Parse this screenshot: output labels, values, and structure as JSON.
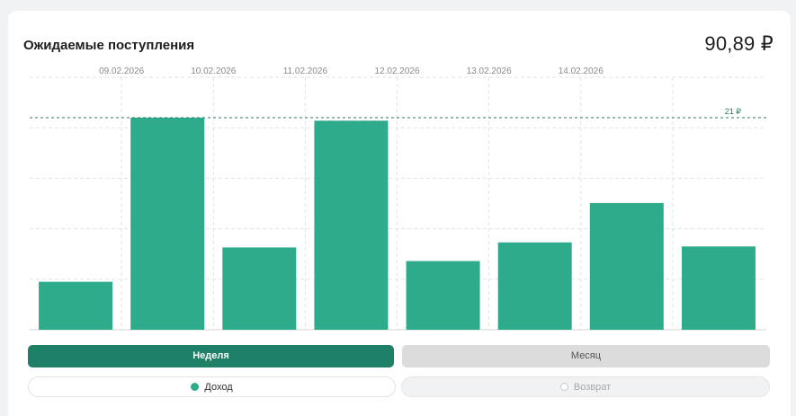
{
  "header": {
    "title": "Ожидаемые поступления",
    "total": "90,89 ₽"
  },
  "chart_data": {
    "type": "bar",
    "title": "Ожидаемые поступления",
    "top_axis_labels": [
      "09.02.2026",
      "10.02.2026",
      "11.02.2026",
      "12.02.2026",
      "13.02.2026",
      "14.02.2026"
    ],
    "values": [
      4.75,
      21.0,
      8.15,
      20.7,
      6.8,
      8.65,
      12.55,
      8.25
    ],
    "ylim": [
      0,
      25
    ],
    "gridlines": [
      0,
      5,
      10,
      15,
      20,
      25
    ],
    "reference_line": {
      "value": 21,
      "label": "21 ₽"
    },
    "color": "#2eab8b",
    "grid": true
  },
  "tabs": {
    "week": "Неделя",
    "month": "Месяц"
  },
  "legend": {
    "income": "Доход",
    "return": "Возврат"
  },
  "colors": {
    "accent": "#1f8068",
    "bar": "#2eab8b",
    "inactive": "#dcdcdc"
  }
}
